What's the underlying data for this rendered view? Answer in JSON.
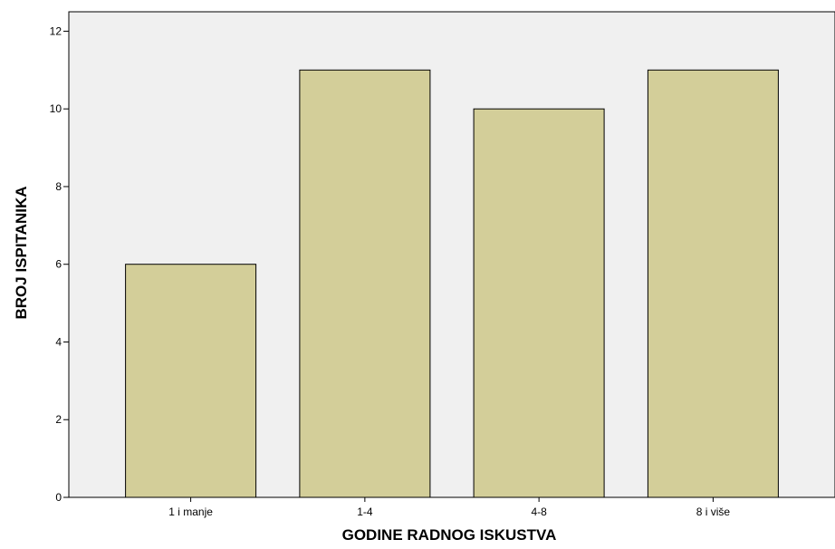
{
  "chart_data": {
    "type": "bar",
    "title": "",
    "xlabel": "GODINE RADNOG ISKUSTVA",
    "ylabel": "BROJ ISPITANIKA",
    "categories": [
      "1 i manje",
      "1-4",
      "4-8",
      "8 i više"
    ],
    "values": [
      6,
      11,
      10,
      11
    ],
    "ylim": [
      0,
      12.5
    ],
    "yticks": [
      0,
      2,
      4,
      6,
      8,
      10,
      12
    ],
    "grid": false,
    "legend": "none",
    "colors": {
      "bar_fill": "#d3ce99",
      "bar_stroke": "#000000",
      "plot_background": "#f0f0f0",
      "axis": "#000000"
    }
  }
}
